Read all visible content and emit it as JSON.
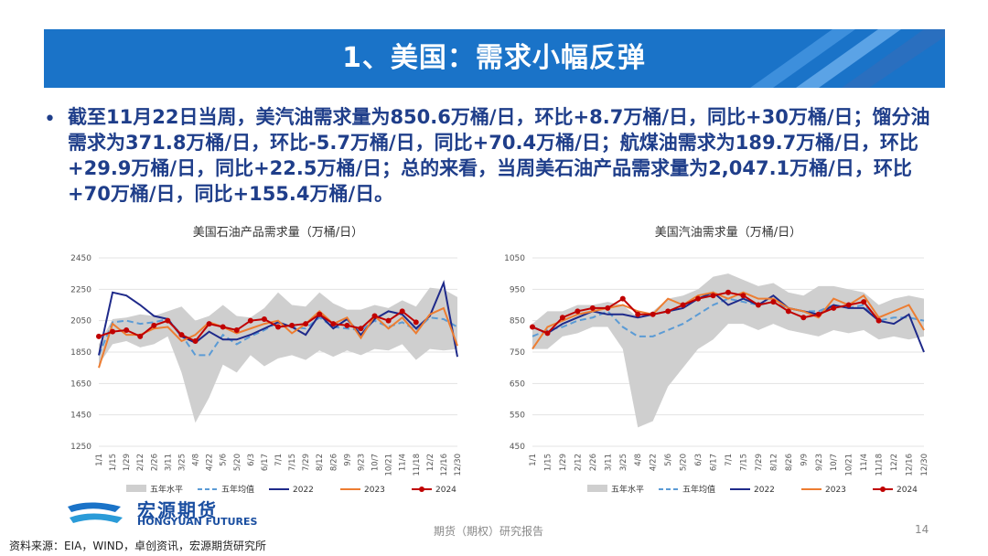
{
  "header": {
    "title": "1、美国：需求小幅反弹"
  },
  "bullet": {
    "text": "截至11月22日当周，美汽油需求量为850.6万桶/日，环比+8.7万桶/日，同比+30万桶/日；馏分油需求为371.8万桶/日，环比-5.7万桶/日，同比+70.4万桶/日；航煤油需求为189.7万桶/日，环比+29.9万桶/日，同比+22.5万桶/日；总的来看，当周美石油产品需求量为2,047.1万桶/日，环比+70万桶/日，同比+155.4万桶/日。"
  },
  "colors": {
    "banner": "#1a73c8",
    "band": "#cfcfcf",
    "avg": "#5b9bd5",
    "y2022": "#1f2a8a",
    "y2023": "#ed7d31",
    "y2024": "#c00000"
  },
  "chart_data": [
    {
      "type": "line",
      "title": "美国石油产品需求量（万桶/日）",
      "x": [
        "1/1",
        "1/15",
        "1/29",
        "2/12",
        "2/26",
        "3/11",
        "3/25",
        "4/8",
        "4/22",
        "5/6",
        "5/20",
        "6/3",
        "6/17",
        "7/1",
        "7/15",
        "7/29",
        "8/12",
        "8/26",
        "9/9",
        "9/23",
        "10/7",
        "10/21",
        "11/4",
        "11/18",
        "12/2",
        "12/16",
        "12/30"
      ],
      "ylim": [
        1250,
        2450
      ],
      "yticks": [
        1250,
        1450,
        1650,
        1850,
        2050,
        2250,
        2450
      ],
      "series": [
        {
          "name": "五年水平",
          "kind": "band",
          "low": [
            1770,
            1900,
            1920,
            1880,
            1900,
            1950,
            1720,
            1400,
            1560,
            1770,
            1720,
            1830,
            1760,
            1810,
            1830,
            1800,
            1860,
            1820,
            1860,
            1830,
            1870,
            1860,
            1900,
            1800,
            1870,
            1860,
            1870
          ],
          "high": [
            1900,
            2060,
            2070,
            2090,
            2080,
            2110,
            2140,
            2050,
            2080,
            2150,
            2080,
            2070,
            2130,
            2230,
            2150,
            2140,
            2230,
            2160,
            2120,
            2120,
            2150,
            2130,
            2180,
            2140,
            2260,
            2250,
            2200
          ]
        },
        {
          "name": "五年均值",
          "kind": "line",
          "values": [
            1830,
            2040,
            2050,
            2030,
            2040,
            2060,
            1960,
            1830,
            1830,
            1960,
            1900,
            1950,
            1990,
            2040,
            2010,
            2000,
            2070,
            2010,
            2000,
            1990,
            2050,
            2010,
            2040,
            1990,
            2070,
            2060,
            2010
          ]
        },
        {
          "name": "2022",
          "kind": "line",
          "values": [
            1830,
            2230,
            2210,
            2150,
            2080,
            2060,
            1950,
            1910,
            1980,
            1930,
            1930,
            1960,
            2000,
            2040,
            2010,
            1960,
            2090,
            2000,
            2060,
            1960,
            2060,
            2110,
            2090,
            2000,
            2080,
            2290,
            1820
          ]
        },
        {
          "name": "2023",
          "kind": "line",
          "values": [
            1750,
            2030,
            1960,
            1960,
            2000,
            2010,
            1920,
            1960,
            2040,
            2010,
            1970,
            2000,
            2030,
            2050,
            1970,
            2030,
            2110,
            2030,
            2070,
            1940,
            2080,
            2000,
            2070,
            1970,
            2090,
            2130,
            1890
          ]
        },
        {
          "name": "2024",
          "kind": "line",
          "values": [
            1950,
            1980,
            1990,
            1950,
            2020,
            2050,
            1960,
            1920,
            2030,
            2010,
            1990,
            2050,
            2060,
            2010,
            2020,
            2030,
            2090,
            2030,
            2020,
            2000,
            2080,
            2050,
            2110,
            2040,
            null,
            null,
            null
          ]
        }
      ]
    },
    {
      "type": "line",
      "title": "美国汽油需求量（万桶/日）",
      "x": [
        "1/1",
        "1/15",
        "1/29",
        "2/12",
        "2/26",
        "3/11",
        "3/25",
        "4/8",
        "4/22",
        "5/6",
        "5/20",
        "6/3",
        "6/17",
        "7/1",
        "7/15",
        "7/29",
        "8/12",
        "8/26",
        "9/9",
        "9/23",
        "10/7",
        "10/21",
        "11/4",
        "11/18",
        "12/2",
        "12/16",
        "12/30"
      ],
      "ylim": [
        450,
        1050
      ],
      "yticks": [
        450,
        550,
        650,
        750,
        850,
        950,
        1050
      ],
      "series": [
        {
          "name": "五年水平",
          "kind": "band",
          "low": [
            760,
            760,
            800,
            810,
            830,
            830,
            760,
            510,
            530,
            640,
            700,
            760,
            790,
            840,
            840,
            820,
            840,
            820,
            810,
            800,
            820,
            810,
            820,
            790,
            800,
            790,
            800
          ],
          "high": [
            840,
            880,
            880,
            900,
            900,
            910,
            900,
            860,
            880,
            920,
            930,
            950,
            990,
            1000,
            980,
            960,
            970,
            940,
            930,
            960,
            960,
            950,
            940,
            900,
            920,
            930,
            920
          ]
        },
        {
          "name": "五年均值",
          "kind": "line",
          "values": [
            800,
            820,
            830,
            850,
            860,
            880,
            830,
            800,
            800,
            820,
            840,
            870,
            900,
            920,
            910,
            900,
            910,
            890,
            880,
            880,
            900,
            890,
            900,
            850,
            860,
            860,
            850
          ]
        },
        {
          "name": "2022",
          "kind": "line",
          "values": [
            830,
            810,
            840,
            860,
            880,
            870,
            870,
            860,
            870,
            880,
            890,
            920,
            940,
            900,
            920,
            900,
            930,
            890,
            880,
            870,
            900,
            890,
            890,
            850,
            840,
            870,
            750
          ]
        },
        {
          "name": "2023",
          "kind": "line",
          "values": [
            760,
            830,
            850,
            870,
            880,
            890,
            900,
            880,
            870,
            920,
            900,
            930,
            940,
            920,
            940,
            920,
            920,
            890,
            880,
            860,
            920,
            900,
            930,
            860,
            880,
            900,
            820
          ]
        },
        {
          "name": "2024",
          "kind": "line",
          "values": [
            830,
            810,
            860,
            880,
            890,
            890,
            920,
            870,
            870,
            880,
            900,
            920,
            930,
            940,
            930,
            900,
            910,
            880,
            860,
            870,
            890,
            900,
            910,
            850,
            null,
            null,
            null
          ]
        }
      ]
    }
  ],
  "legend": {
    "band": "五年水平",
    "avg": "五年均值",
    "y2022": "2022",
    "y2023": "2023",
    "y2024": "2024"
  },
  "logo": {
    "cn": "宏源期货",
    "en": "HONGYUAN FUTURES"
  },
  "footer": {
    "source": "资料来源：EIA，WIND，卓创资讯，宏源期货研究所",
    "center": "期货（期权）研究报告",
    "page": "14"
  }
}
